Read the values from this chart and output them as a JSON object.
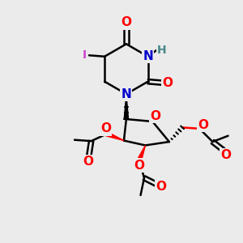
{
  "bg_color": "#ebebeb",
  "atom_colors": {
    "O": "#ff0000",
    "N": "#0000cc",
    "I": "#cc44cc",
    "H": "#4a8888",
    "C": "#000000"
  },
  "bond_color": "#000000",
  "bond_width": 1.8,
  "font_size_atom": 10,
  "fig_size": [
    3.0,
    3.0
  ],
  "dpi": 100
}
